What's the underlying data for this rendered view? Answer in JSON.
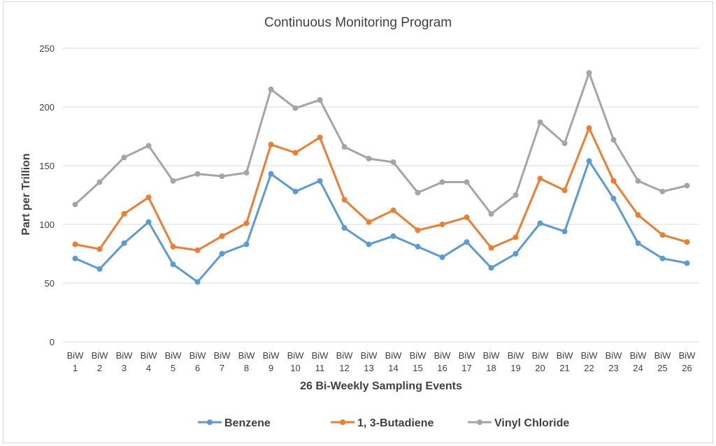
{
  "chart_data": {
    "type": "line",
    "title": "Continuous Monitoring Program",
    "xlabel": "26 Bi-Weekly Sampling Events",
    "ylabel": "Part per Trillion",
    "ylim": [
      0,
      250
    ],
    "yticks": [
      "0",
      "50",
      "100",
      "150",
      "200",
      "250"
    ],
    "grid": true,
    "legend_position": "bottom",
    "categories": [
      [
        "BiW",
        "1"
      ],
      [
        "BiW",
        "2"
      ],
      [
        "BiW",
        "3"
      ],
      [
        "BiW",
        "4"
      ],
      [
        "BiW",
        "5"
      ],
      [
        "BiW",
        "6"
      ],
      [
        "BiW",
        "7"
      ],
      [
        "BiW",
        "8"
      ],
      [
        "BiW",
        "9"
      ],
      [
        "BiW",
        "10"
      ],
      [
        "BiW",
        "11"
      ],
      [
        "BiW",
        "12"
      ],
      [
        "BiW",
        "13"
      ],
      [
        "BiW",
        "14"
      ],
      [
        "BiW",
        "15"
      ],
      [
        "BiW",
        "16"
      ],
      [
        "BiW",
        "17"
      ],
      [
        "BiW",
        "18"
      ],
      [
        "BiW",
        "19"
      ],
      [
        "BiW",
        "20"
      ],
      [
        "BiW",
        "21"
      ],
      [
        "BiW",
        "22"
      ],
      [
        "BiW",
        "23"
      ],
      [
        "BiW",
        "24"
      ],
      [
        "BiW",
        "25"
      ],
      [
        "BiW",
        "26"
      ]
    ],
    "series": [
      {
        "name": "Benzene",
        "color": "#5b9bd5",
        "values": [
          71,
          62,
          84,
          102,
          66,
          51,
          75,
          83,
          143,
          128,
          137,
          97,
          83,
          90,
          81,
          72,
          85,
          63,
          75,
          101,
          94,
          154,
          122,
          84,
          71,
          67
        ]
      },
      {
        "name": "1, 3-Butadiene",
        "color": "#ed7d31",
        "values": [
          83,
          79,
          109,
          123,
          81,
          78,
          90,
          101,
          168,
          161,
          174,
          121,
          102,
          112,
          95,
          100,
          106,
          80,
          89,
          139,
          129,
          182,
          137,
          108,
          91,
          85
        ]
      },
      {
        "name": "Vinyl Chloride",
        "color": "#a5a5a5",
        "values": [
          117,
          136,
          157,
          167,
          137,
          143,
          141,
          144,
          215,
          199,
          206,
          166,
          156,
          153,
          127,
          136,
          136,
          109,
          125,
          187,
          169,
          229,
          172,
          137,
          128,
          133
        ]
      }
    ]
  }
}
